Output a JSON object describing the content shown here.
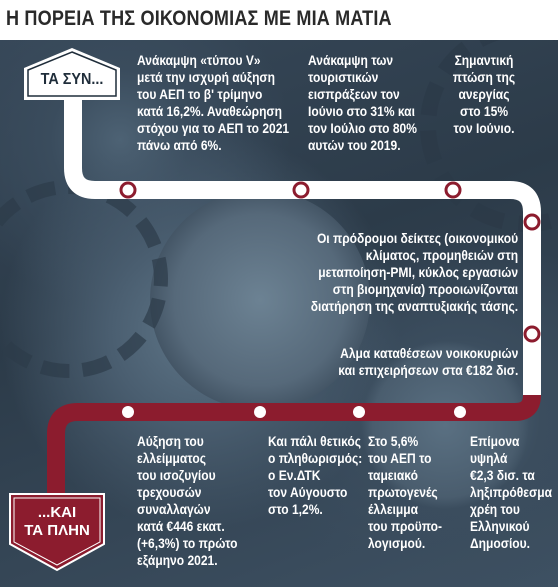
{
  "title": "Η ΠΟΡΕΙΑ ΤΗΣ ΟΙΚΟΝΟΜΙΑΣ ΜΕ ΜΙΑ ΜΑΤΙΑ",
  "start_sign": "ΤΑ ΣΥΝ...",
  "end_sign": [
    "...ΚΑΙ",
    "ΤΑ ΠΛΗΝ"
  ],
  "positives": [
    [
      "Ανάκαμψη «τύπου V»",
      "μετά την ισχυρή αύξηση",
      "του ΑΕΠ το β' τρίμηνο",
      "κατά 16,2%. Αναθεώρηση",
      "στόχου για το ΑΕΠ το 2021",
      "πάνω από 6%."
    ],
    [
      "Ανάκαμψη των",
      "τουριστικών",
      "εισπράξεων τον",
      "Ιούνιο στο 31% και",
      "τον Ιούλιο στο 80%",
      "αυτών του 2019."
    ],
    [
      "Σημαντική",
      "πτώση της",
      "ανεργίας",
      "στο 15%",
      "τον Ιούνιο."
    ],
    [
      "Οι πρόδρομοι δείκτες (οικονομικού",
      "κλίματος, προμηθειών στη",
      "μεταποίηση-PMI, κύκλος εργασιών",
      "στη βιομηχανία) προοιωνίζονται",
      "διατήρηση της αναπτυξιακής τάσης."
    ],
    [
      "Αλμα καταθέσεων νοικοκυριών",
      "και επιχειρήσεων στα €182 δισ."
    ]
  ],
  "negatives": [
    [
      "Αύξηση του",
      "ελλείμματος",
      "του ισοζυγίου",
      "τρεχουσών",
      "συναλλαγών",
      "κατά €446 εκατ.",
      "(+6,3%) το πρώτο",
      "εξάμηνο 2021."
    ],
    [
      "Και πάλι θετικός",
      "ο πληθωρισμός:",
      "ο Εν.ΔΤΚ",
      "τον Αύγουστο",
      "στο 1,2%."
    ],
    [
      "Στο 5,6%",
      "του ΑΕΠ το",
      "ταμειακό",
      "πρωτογενές",
      "έλλειμμα",
      "του προϋπο-",
      "λογισμού."
    ],
    [
      "Επίμονα",
      "υψηλά",
      "€2,3 δισ. τα",
      "ληξιπρόθεσμα",
      "χρέη του",
      "Ελληνικού",
      "Δημοσίου."
    ]
  ],
  "colors": {
    "road_white": "#ffffff",
    "road_maroon": "#8c1c2e",
    "sign_dark": "#1f2d3a",
    "header_text": "#2a2a2a"
  }
}
